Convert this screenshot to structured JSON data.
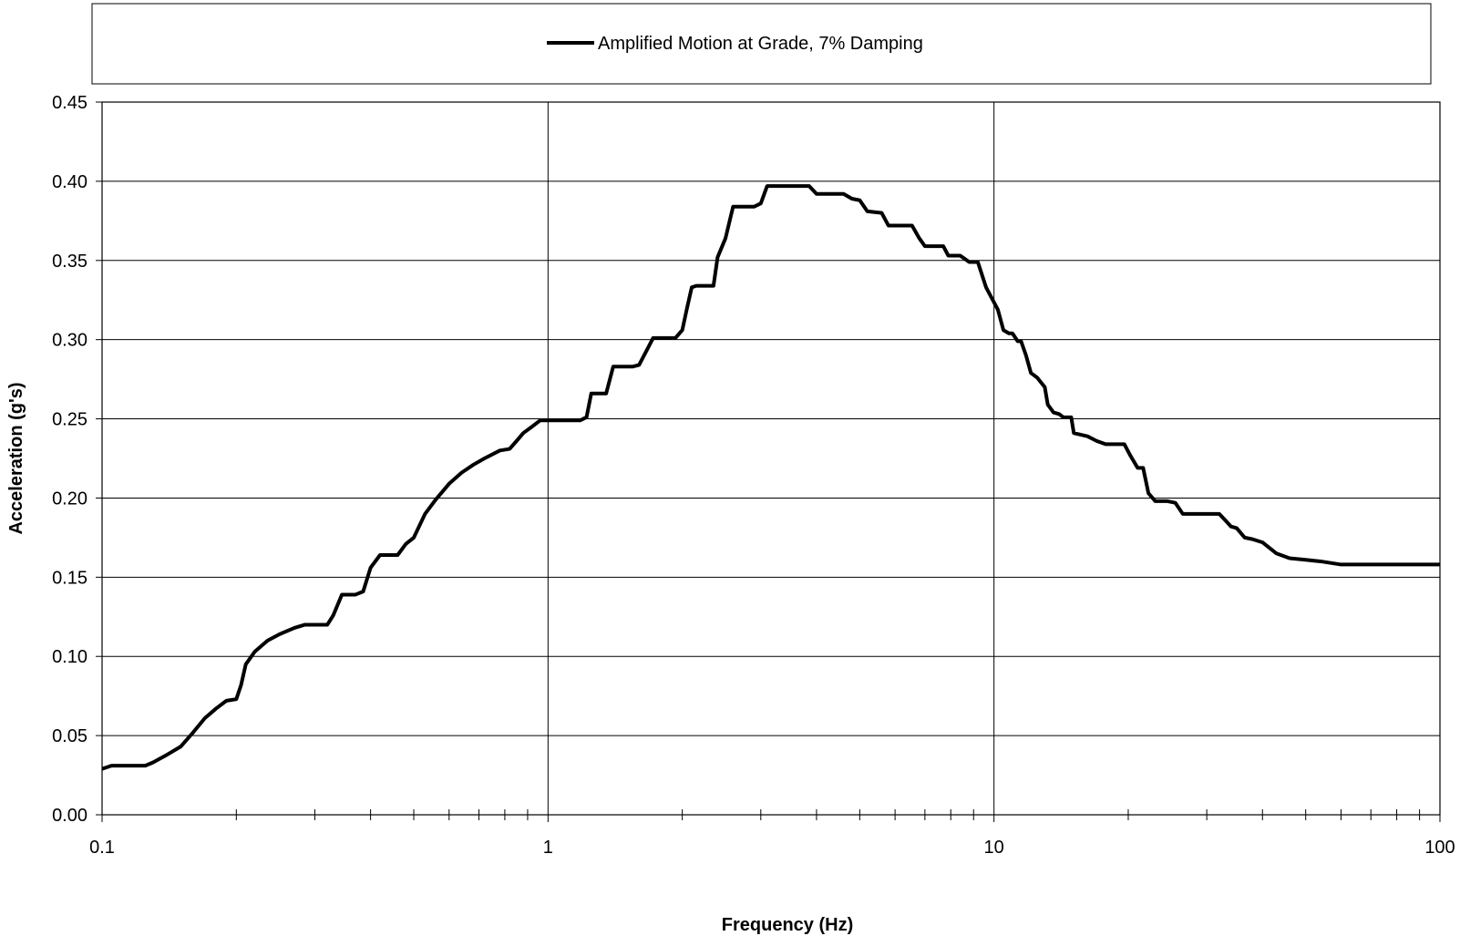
{
  "chart_data": {
    "type": "line",
    "title": "",
    "xlabel": "Frequency (Hz)",
    "ylabel": "Acceleration (g's)",
    "x_scale": "log",
    "xlim": [
      0.1,
      100
    ],
    "ylim": [
      0,
      0.45
    ],
    "x_ticks": [
      0.1,
      1,
      10,
      100
    ],
    "x_tick_labels": [
      "0.1",
      "1",
      "10",
      "100"
    ],
    "y_ticks": [
      0,
      0.05,
      0.1,
      0.15,
      0.2,
      0.25,
      0.3,
      0.35,
      0.4,
      0.45
    ],
    "y_tick_labels": [
      "0.00",
      "0.05",
      "0.10",
      "0.15",
      "0.20",
      "0.25",
      "0.30",
      "0.35",
      "0.40",
      "0.45"
    ],
    "grid": true,
    "legend_position": "top",
    "series": [
      {
        "name": "Amplified Motion at Grade, 7% Damping",
        "color": "#000000",
        "points": [
          [
            0.1,
            0.029
          ],
          [
            0.105,
            0.031
          ],
          [
            0.11,
            0.031
          ],
          [
            0.125,
            0.031
          ],
          [
            0.13,
            0.033
          ],
          [
            0.14,
            0.038
          ],
          [
            0.15,
            0.043
          ],
          [
            0.16,
            0.052
          ],
          [
            0.17,
            0.061
          ],
          [
            0.18,
            0.067
          ],
          [
            0.19,
            0.072
          ],
          [
            0.2,
            0.073
          ],
          [
            0.205,
            0.082
          ],
          [
            0.21,
            0.095
          ],
          [
            0.22,
            0.103
          ],
          [
            0.235,
            0.11
          ],
          [
            0.25,
            0.114
          ],
          [
            0.27,
            0.118
          ],
          [
            0.285,
            0.12
          ],
          [
            0.32,
            0.12
          ],
          [
            0.33,
            0.126
          ],
          [
            0.345,
            0.139
          ],
          [
            0.37,
            0.139
          ],
          [
            0.385,
            0.141
          ],
          [
            0.4,
            0.156
          ],
          [
            0.42,
            0.164
          ],
          [
            0.46,
            0.164
          ],
          [
            0.48,
            0.171
          ],
          [
            0.5,
            0.175
          ],
          [
            0.53,
            0.19
          ],
          [
            0.56,
            0.199
          ],
          [
            0.6,
            0.209
          ],
          [
            0.64,
            0.216
          ],
          [
            0.68,
            0.221
          ],
          [
            0.72,
            0.225
          ],
          [
            0.78,
            0.23
          ],
          [
            0.82,
            0.231
          ],
          [
            0.85,
            0.236
          ],
          [
            0.88,
            0.241
          ],
          [
            0.92,
            0.245
          ],
          [
            0.96,
            0.249
          ],
          [
            1.18,
            0.249
          ],
          [
            1.22,
            0.251
          ],
          [
            1.25,
            0.266
          ],
          [
            1.35,
            0.266
          ],
          [
            1.4,
            0.283
          ],
          [
            1.55,
            0.283
          ],
          [
            1.6,
            0.284
          ],
          [
            1.67,
            0.294
          ],
          [
            1.72,
            0.301
          ],
          [
            1.93,
            0.301
          ],
          [
            2.0,
            0.306
          ],
          [
            2.05,
            0.32
          ],
          [
            2.1,
            0.333
          ],
          [
            2.15,
            0.334
          ],
          [
            2.35,
            0.334
          ],
          [
            2.4,
            0.352
          ],
          [
            2.5,
            0.364
          ],
          [
            2.6,
            0.384
          ],
          [
            2.9,
            0.384
          ],
          [
            3.0,
            0.386
          ],
          [
            3.1,
            0.397
          ],
          [
            3.85,
            0.397
          ],
          [
            4.0,
            0.392
          ],
          [
            4.6,
            0.392
          ],
          [
            4.8,
            0.389
          ],
          [
            5.0,
            0.388
          ],
          [
            5.2,
            0.381
          ],
          [
            5.6,
            0.38
          ],
          [
            5.8,
            0.372
          ],
          [
            6.55,
            0.372
          ],
          [
            6.8,
            0.364
          ],
          [
            7.0,
            0.359
          ],
          [
            7.7,
            0.359
          ],
          [
            7.9,
            0.353
          ],
          [
            8.4,
            0.353
          ],
          [
            8.6,
            0.351
          ],
          [
            8.8,
            0.349
          ],
          [
            9.2,
            0.349
          ],
          [
            9.6,
            0.333
          ],
          [
            10.2,
            0.319
          ],
          [
            10.5,
            0.306
          ],
          [
            10.8,
            0.304
          ],
          [
            11.0,
            0.304
          ],
          [
            11.3,
            0.299
          ],
          [
            11.5,
            0.299
          ],
          [
            11.8,
            0.29
          ],
          [
            12.1,
            0.279
          ],
          [
            12.5,
            0.276
          ],
          [
            13.0,
            0.27
          ],
          [
            13.2,
            0.259
          ],
          [
            13.6,
            0.254
          ],
          [
            14.0,
            0.253
          ],
          [
            14.3,
            0.251
          ],
          [
            14.9,
            0.251
          ],
          [
            15.1,
            0.241
          ],
          [
            16.2,
            0.239
          ],
          [
            17.0,
            0.236
          ],
          [
            17.8,
            0.234
          ],
          [
            19.6,
            0.234
          ],
          [
            20.2,
            0.227
          ],
          [
            21.0,
            0.219
          ],
          [
            21.6,
            0.219
          ],
          [
            22.2,
            0.203
          ],
          [
            23.0,
            0.198
          ],
          [
            24.5,
            0.198
          ],
          [
            25.5,
            0.197
          ],
          [
            26.5,
            0.19
          ],
          [
            31.0,
            0.19
          ],
          [
            32.0,
            0.19
          ],
          [
            33.0,
            0.186
          ],
          [
            34.0,
            0.182
          ],
          [
            35.0,
            0.181
          ],
          [
            36.5,
            0.175
          ],
          [
            38.0,
            0.174
          ],
          [
            40.0,
            0.172
          ],
          [
            43.0,
            0.165
          ],
          [
            46.0,
            0.162
          ],
          [
            50.0,
            0.161
          ],
          [
            54.0,
            0.16
          ],
          [
            60.0,
            0.158
          ],
          [
            80.0,
            0.158
          ],
          [
            100.0,
            0.158
          ]
        ]
      }
    ]
  }
}
